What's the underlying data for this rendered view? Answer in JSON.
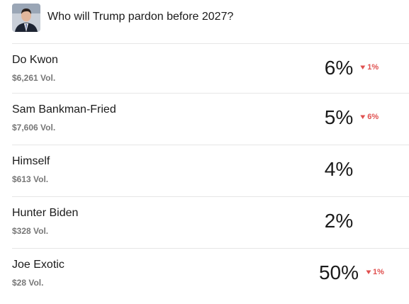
{
  "header": {
    "title": "Who will Trump pardon before 2027?"
  },
  "rows": [
    {
      "name": "Do Kwon",
      "volume": "$6,261 Vol.",
      "chance": "6%",
      "change": "1%"
    },
    {
      "name": "Sam Bankman-Fried",
      "volume": "$7,606 Vol.",
      "chance": "5%",
      "change": "6%"
    },
    {
      "name": "Himself",
      "volume": "$613 Vol.",
      "chance": "4%"
    },
    {
      "name": "Hunter Biden",
      "volume": "$328 Vol.",
      "chance": "2%"
    },
    {
      "name": "Joe Exotic",
      "volume": "$28 Vol.",
      "chance": "50%",
      "change": "1%"
    }
  ]
}
